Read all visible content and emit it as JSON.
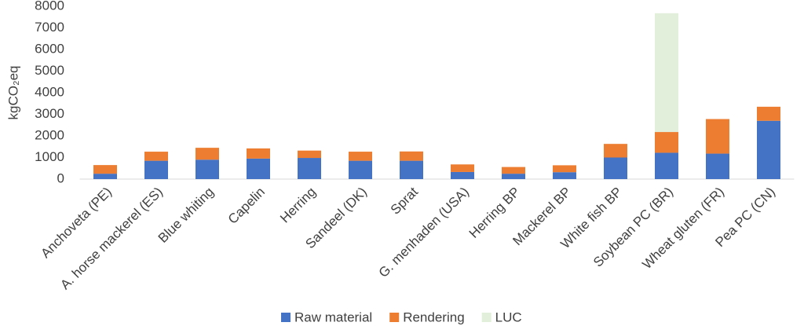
{
  "chart_data": {
    "type": "stacked-bar",
    "y_label": "kgCO₂eq",
    "categories": [
      "Anchoveta (PE)",
      "A. horse mackerel (ES)",
      "Blue whiting",
      "Capelin",
      "Herring",
      "Sandeel (DK)",
      "Sprat",
      "G. menhaden (USA)",
      "Herring BP",
      "Mackerel BP",
      "White fish BP",
      "Soybean PC (BR)",
      "Wheat gluten (FR)",
      "Pea PC (CN)"
    ],
    "series": [
      {
        "name": "Raw material",
        "color": "#4472c4",
        "values": [
          250,
          850,
          900,
          950,
          980,
          850,
          850,
          330,
          250,
          320,
          1000,
          1220,
          1180,
          2700
        ]
      },
      {
        "name": "Rendering",
        "color": "#ed7d31",
        "values": [
          400,
          420,
          550,
          470,
          340,
          420,
          430,
          350,
          310,
          320,
          630,
          960,
          1600,
          650
        ]
      },
      {
        "name": "LUC",
        "color": "#e2efda",
        "values": [
          0,
          0,
          0,
          0,
          0,
          0,
          0,
          0,
          0,
          0,
          0,
          5500,
          0,
          0
        ]
      }
    ],
    "ylim": [
      0,
      8000
    ],
    "yticks": [
      0,
      1000,
      2000,
      3000,
      4000,
      5000,
      6000,
      7000,
      8000
    ],
    "legend": "bottom"
  }
}
